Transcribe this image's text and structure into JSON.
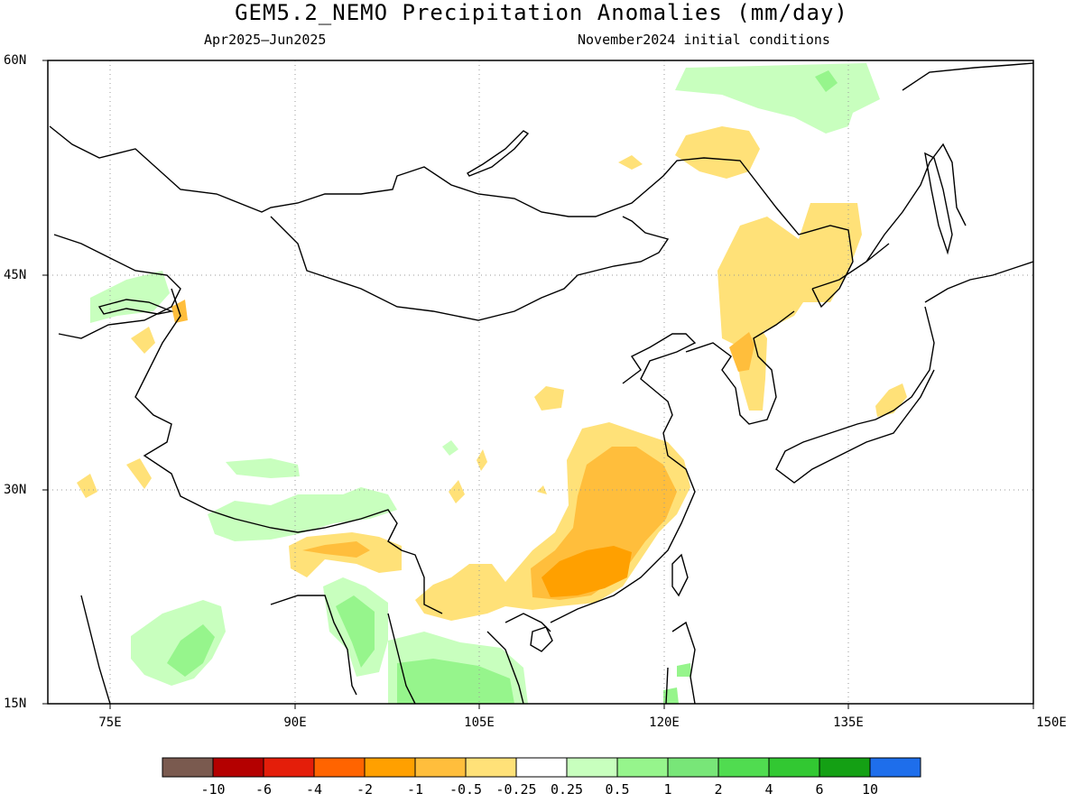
{
  "header": {
    "title": "GEM5.2_NEMO Precipitation Anomalies (mm/day)",
    "period": "Apr2025–Jun2025",
    "initial_conditions": "November2024 initial conditions"
  },
  "axes": {
    "lat_labels": [
      "60N",
      "45N",
      "30N",
      "15N"
    ],
    "lon_labels": [
      "75E",
      "90E",
      "105E",
      "120E",
      "135E",
      "150E"
    ]
  },
  "colorbar": {
    "colors": [
      "#7a5a4f",
      "#b40000",
      "#e41e0a",
      "#ff6400",
      "#ffa000",
      "#ffbe3c",
      "#ffe178",
      "#ffffff",
      "#c8ffbe",
      "#96f58c",
      "#78e678",
      "#50dc50",
      "#32c832",
      "#14a014",
      "#1e6eeb"
    ],
    "labels": [
      "-10",
      "-6",
      "-4",
      "-2",
      "-1",
      "-0.5",
      "-0.25",
      "0.25",
      "0.5",
      "1",
      "2",
      "4",
      "6",
      "10"
    ]
  },
  "map_legend": {
    "positive_anomaly_color": "#c8ffbe",
    "negative_anomaly_color": "#ffe178",
    "strong_negative_color": "#ffa000"
  }
}
